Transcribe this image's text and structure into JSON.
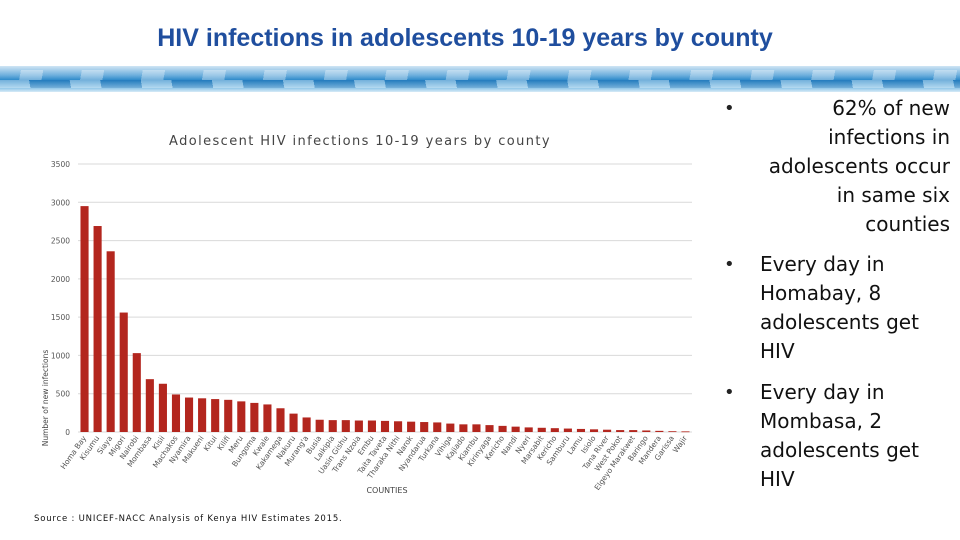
{
  "slide": {
    "title": "HIV infections in adolescents 10-19 years by county",
    "source": "Source : UNICEF-NACC Analysis of Kenya HIV Estimates 2015."
  },
  "bullets": [
    "62% of new infections in adolescents occur in same six counties",
    "Every day in Homabay, 8 adolescents get HIV",
    "Every day in Mombasa, 2 adolescents get HIV"
  ],
  "colors": {
    "title": "#1f4e9e",
    "bar": "#b3261e",
    "grid": "#d9d9d9"
  },
  "chart_data": {
    "type": "bar",
    "title": "Adolescent HIV infections 10-19 years by county",
    "xlabel": "COUNTIES",
    "ylabel": "Number of new infections",
    "ylim": [
      0,
      3500
    ],
    "yticks": [
      0,
      500,
      1000,
      1500,
      2000,
      2500,
      3000,
      3500
    ],
    "grid": true,
    "categories": [
      "Homa Bay",
      "Kisumu",
      "Siaya",
      "Migori",
      "Nairobi",
      "Mombasa",
      "Kisii",
      "Machakos",
      "Nyamira",
      "Makueni",
      "Kitui",
      "Kilifi",
      "Meru",
      "Bungoma",
      "Kwale",
      "Kakamega",
      "Nakuru",
      "Murang'a",
      "Busia",
      "Laikipia",
      "Uasin Gishu",
      "Trans Nzoia",
      "Embu",
      "Taita Taveta",
      "Tharaka Nithi",
      "Narok",
      "Nyandarua",
      "Turkana",
      "Vihiga",
      "Kajiado",
      "Kiambu",
      "Kirinyaga",
      "Kericho",
      "Nandi",
      "Nyeri",
      "Marsabit",
      "Kericho",
      "Samburu",
      "Lamu",
      "Isiolo",
      "Tana River",
      "West Pokot",
      "Elgeyo Marakwet",
      "Baringo",
      "Mandera",
      "Garissa",
      "Wajir"
    ],
    "values": [
      2950,
      2690,
      2360,
      1560,
      1030,
      690,
      630,
      490,
      450,
      440,
      430,
      420,
      400,
      380,
      360,
      310,
      240,
      190,
      160,
      155,
      155,
      150,
      150,
      145,
      140,
      135,
      130,
      125,
      110,
      100,
      100,
      90,
      80,
      70,
      60,
      55,
      50,
      45,
      40,
      35,
      30,
      25,
      25,
      20,
      15,
      10,
      8
    ]
  }
}
